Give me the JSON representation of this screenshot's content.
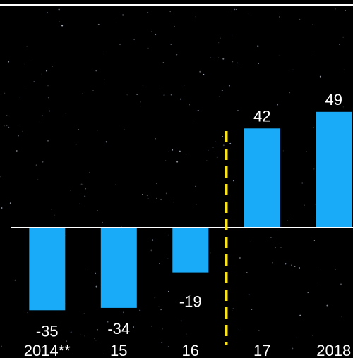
{
  "chart_data": {
    "type": "bar",
    "categories": [
      "2014**",
      "15",
      "16",
      "17",
      "2018"
    ],
    "values": [
      -35,
      -34,
      -19,
      42,
      49
    ],
    "value_labels": [
      "-35",
      "-34",
      "-19",
      "42",
      "49"
    ],
    "title": "",
    "xlabel": "",
    "ylabel": "",
    "ylim": [
      -44,
      58
    ],
    "grid": false,
    "legend": "none",
    "bar_color": "#1aabf8",
    "text_color": "#ffffff",
    "baseline_color": "#ffffff",
    "divider": {
      "between": [
        "16",
        "17"
      ],
      "color": "#ffe600",
      "style": "dashed"
    },
    "background_color": "#000000"
  }
}
